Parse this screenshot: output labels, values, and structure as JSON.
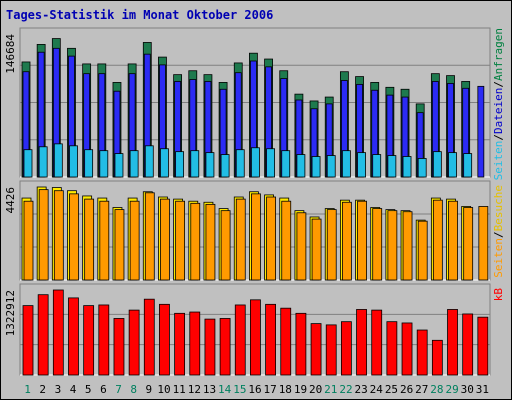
{
  "chart_data": {
    "type": "bar",
    "title": "Tages-Statistik im Monat Oktober 2006",
    "categories": [
      "1",
      "2",
      "3",
      "4",
      "5",
      "6",
      "7",
      "8",
      "9",
      "10",
      "11",
      "12",
      "13",
      "14",
      "15",
      "16",
      "17",
      "18",
      "19",
      "20",
      "21",
      "22",
      "23",
      "24",
      "25",
      "26",
      "27",
      "28",
      "29",
      "30",
      "31"
    ],
    "weekend_days": [
      "1",
      "7",
      "8",
      "14",
      "15",
      "21",
      "22",
      "28",
      "29"
    ],
    "panels": [
      {
        "id": "requests",
        "ymax_label": "146684",
        "ymax": 146684,
        "series": [
          {
            "name": "Anfragen",
            "color": "#1e7a4e",
            "values": [
              118000,
              136000,
              142000,
              132000,
              116000,
              116000,
              97000,
              116000,
              138000,
              123000,
              105000,
              109000,
              105000,
              97000,
              117000,
              127000,
              121000,
              109000,
              85000,
              78000,
              82000,
              108000,
              103000,
              97000,
              92000,
              90000,
              75000,
              106000,
              104000,
              98000,
              0
            ]
          },
          {
            "name": "Dateien",
            "color": "#2b2bf4",
            "values": [
              108000,
              128000,
              132000,
              124000,
              106000,
              106000,
              88000,
              106000,
              126000,
              115000,
              98000,
              100000,
              98000,
              90000,
              107000,
              119000,
              113000,
              101000,
              79000,
              70000,
              75000,
              99000,
              95000,
              89000,
              84000,
              82000,
              66000,
              98000,
              96000,
              91000,
              93000
            ]
          },
          {
            "name": "Seiten",
            "color": "#22bde5",
            "values": [
              28000,
              31000,
              34000,
              32000,
              28000,
              27000,
              24000,
              27000,
              32000,
              29000,
              26000,
              27000,
              25000,
              23000,
              28000,
              30000,
              29000,
              27000,
              23000,
              21000,
              22000,
              27000,
              25000,
              23000,
              22000,
              21000,
              19000,
              26000,
              25000,
              24000,
              0
            ]
          }
        ],
        "legend": "Seiten / Dateien / Anfragen"
      },
      {
        "id": "visits",
        "ymax_label": "4426",
        "ymax": 4426,
        "series": [
          {
            "name": "Besuche",
            "color": "#ffea00",
            "values": [
              3900,
              4426,
              4400,
              4250,
              4000,
              3900,
              3450,
              3900,
              4200,
              3950,
              3850,
              3750,
              3700,
              3400,
              3950,
              4200,
              4050,
              3900,
              3300,
              3000,
              3400,
              3800,
              3800,
              3450,
              3350,
              3300,
              2850,
              3900,
              3850,
              3500,
              0
            ]
          },
          {
            "name": "Seiten",
            "color": "#ff9a00",
            "values": [
              3750,
              4300,
              4250,
              4100,
              3850,
              3750,
              3350,
              3750,
              4150,
              3850,
              3750,
              3650,
              3600,
              3300,
              3850,
              4100,
              3950,
              3750,
              3200,
              2900,
              3350,
              3700,
              3750,
              3400,
              3300,
              3250,
              2800,
              3800,
              3750,
              3450,
              3500
            ]
          }
        ],
        "legend": "Seiten / Besuche"
      },
      {
        "id": "kb",
        "ymax_label": "1322912",
        "ymax": 1322912,
        "series": [
          {
            "name": "kB",
            "color": "#ff0000",
            "values": [
              1080000,
              1250000,
              1322912,
              1200000,
              1080000,
              1090000,
              880000,
              1010000,
              1180000,
              1100000,
              960000,
              980000,
              870000,
              880000,
              1090000,
              1170000,
              1100000,
              1040000,
              960000,
              800000,
              780000,
              830000,
              1020000,
              1010000,
              830000,
              810000,
              700000,
              540000,
              1020000,
              950000,
              900000
            ]
          }
        ],
        "legend": "kB"
      }
    ],
    "grid": true,
    "legend_position": "right"
  }
}
